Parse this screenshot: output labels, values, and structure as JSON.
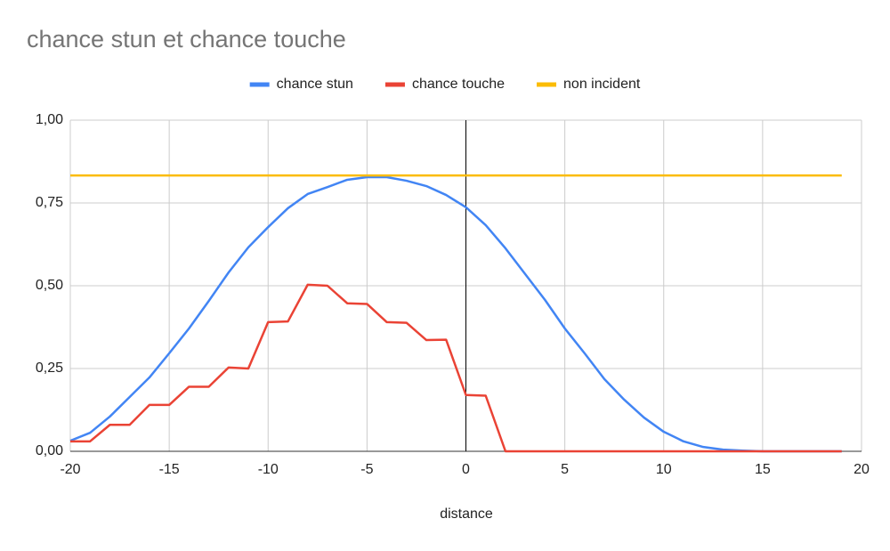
{
  "chart_data": {
    "type": "line",
    "title": "chance stun et chance touche",
    "x_label": "distance",
    "x": [
      -20,
      -19,
      -18,
      -17,
      -16,
      -15,
      -14,
      -13,
      -12,
      -11,
      -10,
      -9,
      -8,
      -7,
      -6,
      -5,
      -4,
      -3,
      -2,
      -1,
      0,
      1,
      2,
      3,
      4,
      5,
      6,
      7,
      8,
      9,
      10,
      11,
      12,
      13,
      14,
      15,
      16,
      17,
      18,
      19
    ],
    "series": [
      {
        "name": "chance stun",
        "color": "#4285f4",
        "values": [
          0.032,
          0.056,
          0.105,
          0.164,
          0.223,
          0.296,
          0.371,
          0.454,
          0.54,
          0.616,
          0.677,
          0.734,
          0.777,
          0.798,
          0.82,
          0.828,
          0.828,
          0.817,
          0.801,
          0.774,
          0.737,
          0.683,
          0.613,
          0.535,
          0.457,
          0.371,
          0.296,
          0.218,
          0.156,
          0.102,
          0.059,
          0.03,
          0.013,
          0.005,
          0.002,
          0,
          0,
          0,
          0,
          0
        ]
      },
      {
        "name": "chance touche",
        "color": "#ea4335",
        "values": [
          0.03,
          0.03,
          0.08,
          0.08,
          0.14,
          0.14,
          0.195,
          0.195,
          0.253,
          0.25,
          0.39,
          0.392,
          0.503,
          0.5,
          0.447,
          0.445,
          0.39,
          0.388,
          0.336,
          0.337,
          0.17,
          0.168,
          0,
          0,
          0,
          0,
          0,
          0,
          0,
          0,
          0,
          0,
          0,
          0,
          0,
          0,
          0,
          0,
          0,
          0
        ]
      },
      {
        "name": "non incident",
        "color": "#fbbc04",
        "values": [
          0.833,
          0.833,
          0.833,
          0.833,
          0.833,
          0.833,
          0.833,
          0.833,
          0.833,
          0.833,
          0.833,
          0.833,
          0.833,
          0.833,
          0.833,
          0.833,
          0.833,
          0.833,
          0.833,
          0.833,
          0.833,
          0.833,
          0.833,
          0.833,
          0.833,
          0.833,
          0.833,
          0.833,
          0.833,
          0.833,
          0.833,
          0.833,
          0.833,
          0.833,
          0.833,
          0.833,
          0.833,
          0.833,
          0.833,
          0.833
        ]
      }
    ],
    "xlim": [
      -20,
      20
    ],
    "xticks": [
      -20,
      -15,
      -10,
      -5,
      0,
      5,
      10,
      15,
      20
    ],
    "ylim": [
      0,
      1
    ],
    "yticks": [
      {
        "value": 0,
        "label": "0,00"
      },
      {
        "value": 0.25,
        "label": "0,25"
      },
      {
        "value": 0.5,
        "label": "0,50"
      },
      {
        "value": 0.75,
        "label": "0,75"
      },
      {
        "value": 1,
        "label": "1,00"
      }
    ],
    "grid": true,
    "legend": "top"
  }
}
